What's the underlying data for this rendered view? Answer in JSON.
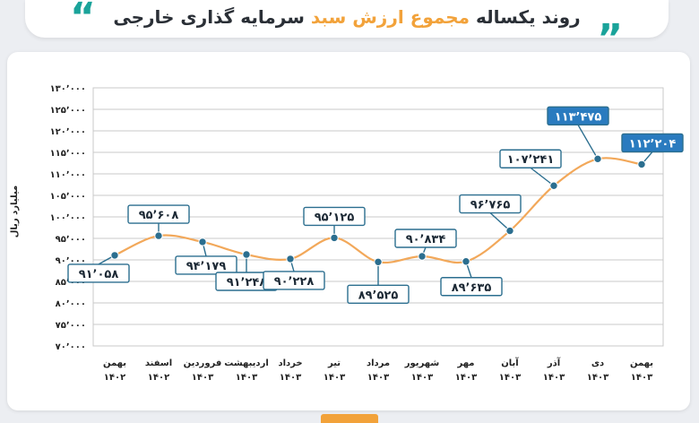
{
  "header": {
    "title_prefix": "روند یکساله",
    "title_highlight": "مجموع ارزش سبد",
    "title_suffix": "سرمایه گذاری خارجی",
    "quote_left": "“",
    "quote_right": "„"
  },
  "colors": {
    "line": "#f2a85a",
    "marker": "#2b6e8f",
    "label_border": "#2b6e8f",
    "label_fill": "#ffffff",
    "highlight_fill": "#2a7bbf",
    "grid": "#c9c9c9",
    "accent_quote": "#1aa39a",
    "accent_title": "#f2a23a"
  },
  "chart_data": {
    "type": "line",
    "ylabel": "میلیارد ریال",
    "ylim": [
      70000,
      130000
    ],
    "yticks": [
      "۷۰٬۰۰۰",
      "۷۵٬۰۰۰",
      "۸۰٬۰۰۰",
      "۸۵٬۰۰۰",
      "۹۰٬۰۰۰",
      "۹۵٬۰۰۰",
      "۱۰۰٬۰۰۰",
      "۱۰۵٬۰۰۰",
      "۱۱۰٬۰۰۰",
      "۱۱۵٬۰۰۰",
      "۱۲۰٬۰۰۰",
      "۱۲۵٬۰۰۰",
      "۱۳۰٬۰۰۰"
    ],
    "grid": true,
    "categories": [
      {
        "month": "بهمن",
        "year": "۱۴۰۲"
      },
      {
        "month": "اسفند",
        "year": "۱۴۰۲"
      },
      {
        "month": "فروردین",
        "year": "۱۴۰۳"
      },
      {
        "month": "اردیبهشت",
        "year": "۱۴۰۳"
      },
      {
        "month": "خرداد",
        "year": "۱۴۰۳"
      },
      {
        "month": "تیر",
        "year": "۱۴۰۳"
      },
      {
        "month": "مرداد",
        "year": "۱۴۰۳"
      },
      {
        "month": "شهریور",
        "year": "۱۴۰۳"
      },
      {
        "month": "مهر",
        "year": "۱۴۰۳"
      },
      {
        "month": "آبان",
        "year": "۱۴۰۳"
      },
      {
        "month": "آذر",
        "year": "۱۴۰۳"
      },
      {
        "month": "دی",
        "year": "۱۴۰۳"
      },
      {
        "month": "بهمن",
        "year": "۱۴۰۳"
      }
    ],
    "values": [
      91058,
      95608,
      94179,
      91248,
      90228,
      95125,
      89525,
      90834,
      89635,
      96765,
      107241,
      113475,
      112204
    ],
    "data_labels": [
      "۹۱٬۰۵۸",
      "۹۵٬۶۰۸",
      "۹۴٬۱۷۹",
      "۹۱٬۲۴۸",
      "۹۰٬۲۲۸",
      "۹۵٬۱۲۵",
      "۸۹٬۵۲۵",
      "۹۰٬۸۳۴",
      "۸۹٬۶۳۵",
      "۹۶٬۷۶۵",
      "۱۰۷٬۲۴۱",
      "۱۱۳٬۴۷۵",
      "۱۱۲٬۲۰۴"
    ],
    "highlighted": [
      11,
      12
    ]
  }
}
